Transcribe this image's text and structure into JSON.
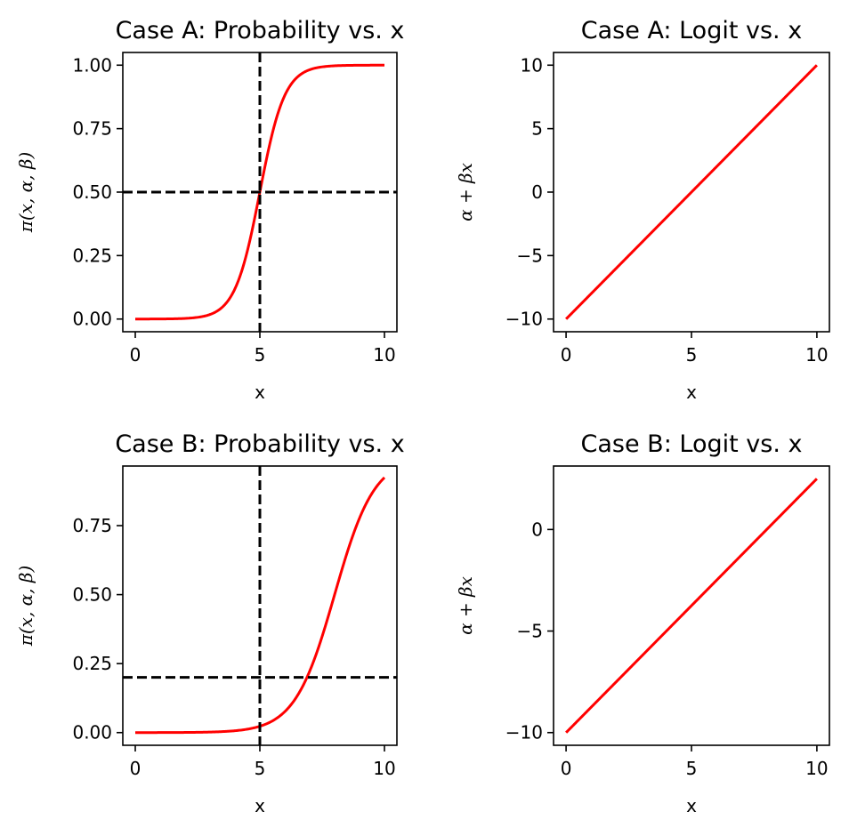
{
  "chart_data": [
    {
      "type": "line",
      "title": "Case A: Probability vs. x",
      "xlabel": "x",
      "ylabel": "π(x, α, β)",
      "xlim": [
        -0.5,
        10.5
      ],
      "ylim": [
        -0.05,
        1.05
      ],
      "xticks": [
        "0",
        "5",
        "10"
      ],
      "yticks": [
        "0.00",
        "0.25",
        "0.50",
        "0.75",
        "1.00"
      ],
      "grid": false,
      "curve": {
        "kind": "logistic",
        "alpha": -10,
        "beta": 2,
        "x_range": [
          0,
          10
        ],
        "color": "#ff0000"
      },
      "series": [
        {
          "x": [
            0,
            1,
            2,
            3,
            3.5,
            4,
            4.5,
            5,
            5.5,
            6,
            6.5,
            7,
            8,
            9,
            10
          ],
          "values": [
            0.0,
            0.0003,
            0.0025,
            0.018,
            0.047,
            0.119,
            0.269,
            0.5,
            0.731,
            0.881,
            0.953,
            0.982,
            0.9975,
            0.9997,
            1.0
          ]
        }
      ],
      "reference_lines": {
        "vertical_x": 5,
        "horizontal_y": 0.5,
        "style": "dashed",
        "color": "#000000"
      }
    },
    {
      "type": "line",
      "title": "Case A: Logit vs. x",
      "xlabel": "x",
      "ylabel": "α + βx",
      "xlim": [
        -0.5,
        10.5
      ],
      "ylim": [
        -11,
        11
      ],
      "xticks": [
        "0",
        "5",
        "10"
      ],
      "yticks": [
        "−10",
        "−5",
        "0",
        "5",
        "10"
      ],
      "grid": false,
      "curve": {
        "kind": "linear",
        "alpha": -10,
        "beta": 2,
        "x_range": [
          0,
          10
        ],
        "color": "#ff0000"
      },
      "series": [
        {
          "x": [
            0,
            10
          ],
          "values": [
            -10,
            10
          ]
        }
      ]
    },
    {
      "type": "line",
      "title": "Case B: Probability vs. x",
      "xlabel": "x",
      "ylabel": "π(x, α, β)",
      "xlim": [
        -0.5,
        10.5
      ],
      "ylim": [
        -0.046,
        0.966
      ],
      "xticks": [
        "0",
        "5",
        "10"
      ],
      "yticks": [
        "0.00",
        "0.25",
        "0.50",
        "0.75"
      ],
      "grid": false,
      "curve": {
        "kind": "logistic",
        "alpha": -10,
        "beta": 1.25,
        "x_range": [
          0,
          10
        ],
        "color": "#ff0000"
      },
      "series": [
        {
          "x": [
            0,
            2,
            4,
            5,
            6,
            7,
            8,
            9,
            10
          ],
          "values": [
            0.0,
            0.0006,
            0.0067,
            0.022,
            0.076,
            0.223,
            0.5,
            0.777,
            0.924
          ]
        }
      ],
      "reference_lines": {
        "vertical_x": 5,
        "horizontal_y": 0.2,
        "style": "dashed",
        "color": "#000000"
      }
    },
    {
      "type": "line",
      "title": "Case B: Logit vs. x",
      "xlabel": "x",
      "ylabel": "α + βx",
      "xlim": [
        -0.5,
        10.5
      ],
      "ylim": [
        -10.625,
        3.125
      ],
      "xticks": [
        "0",
        "5",
        "10"
      ],
      "yticks": [
        "−10",
        "−5",
        "0"
      ],
      "grid": false,
      "curve": {
        "kind": "linear",
        "alpha": -10,
        "beta": 1.25,
        "x_range": [
          0,
          10
        ],
        "color": "#ff0000"
      },
      "series": [
        {
          "x": [
            0,
            10
          ],
          "values": [
            -10,
            2.5
          ]
        }
      ]
    }
  ]
}
